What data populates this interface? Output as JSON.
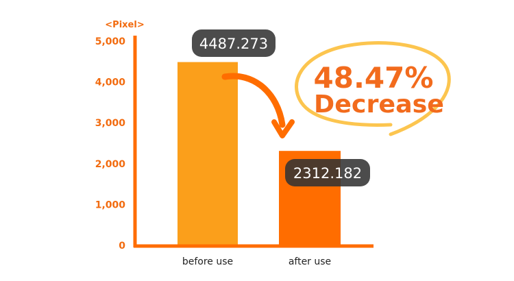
{
  "chart_data": {
    "type": "bar",
    "ylabel": "<Pixel>",
    "categories": [
      "before use",
      "after use"
    ],
    "values": [
      4487.273,
      2312.182
    ],
    "data_labels": [
      "4487.273",
      "2312.182"
    ],
    "yticks": [
      "0",
      "1,000",
      "2,000",
      "3,000",
      "4,000",
      "5,000"
    ],
    "ylim": [
      0,
      5000
    ],
    "grid": false,
    "colors": {
      "bars": [
        "#fb9f1b",
        "#ff6d00"
      ],
      "axis": "#ff6d00",
      "tick_text": "#f26b0f",
      "label_box": "#333333",
      "callout": "#f26b1d",
      "ellipse": "#fcc54f"
    },
    "annotation": {
      "percent": "48.47%",
      "text": "Decrease"
    }
  }
}
